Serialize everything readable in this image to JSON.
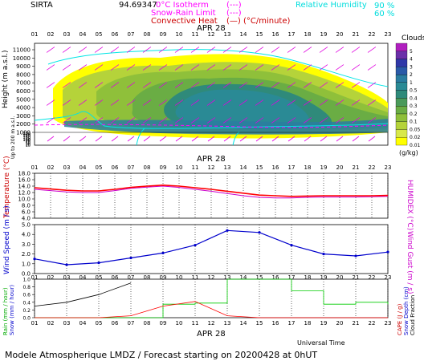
{
  "header": {
    "station": "SIRTA",
    "coords": "94.69347",
    "legend_left": [
      {
        "label": "0°C Isotherm",
        "style": "(---)",
        "color": "#ff00ff"
      },
      {
        "label": "Snow-Rain Limit",
        "style": "(---)",
        "color": "#ff00ff"
      },
      {
        "label": "Convective Heat",
        "style": "(—) (°C/minute)",
        "color": "#cc0000"
      }
    ],
    "legend_right": {
      "label": "Relative Humidity",
      "values": [
        "90 %",
        "60 %"
      ],
      "color": "#00dddd"
    }
  },
  "footer": {
    "xlabel": "Universal Time",
    "title": "Modele Atmospherique LMDZ / Forecast starting on 20200428 at 0hUT"
  },
  "hours": [
    "01",
    "02",
    "03",
    "04",
    "05",
    "06",
    "07",
    "08",
    "09",
    "10",
    "11",
    "12",
    "13",
    "14",
    "15",
    "16",
    "17",
    "18",
    "19",
    "20",
    "21",
    "22",
    "23"
  ],
  "date_label": "APR 28",
  "colors": {
    "temperature": "#ff0000",
    "humidex": "#cc00cc",
    "wind": "#0000cc",
    "rain": "#ff0000",
    "snow": "#000000",
    "cloud_fraction": "#00cc00",
    "rh": "#00e5e5",
    "arrows": "#e000e0"
  },
  "chart_data": [
    {
      "type": "heatmap",
      "title": "Clouds",
      "ylabel": "Height (m a.s.l.)",
      "ylabel2": "Up to 200 m a.s.l.",
      "yticks_upper": [
        1000,
        2000,
        3000,
        4000,
        5000,
        6000,
        7000,
        8000,
        9000,
        10000,
        11000
      ],
      "yticks_lower": [
        10,
        20,
        30,
        40,
        50,
        60,
        70,
        80,
        90,
        100,
        120,
        140,
        160,
        180,
        200
      ],
      "colorbar": {
        "label": "(g/kg)",
        "levels": [
          "0.01",
          "0.02",
          "0.05",
          "0.1",
          "0.2",
          "0.3",
          "0.4",
          "0.5",
          "1",
          "2",
          "3",
          "4",
          "5"
        ],
        "colors": [
          "#ffff00",
          "#d8e84a",
          "#b5d33a",
          "#8fc03a",
          "#6aad44",
          "#4a9a5a",
          "#2f8a7a",
          "#2a8a95",
          "#2a7ca0",
          "#2a5aa8",
          "#3038a8",
          "#6a2fa8",
          "#b01fbf"
        ]
      }
    },
    {
      "type": "line",
      "ylabel": "Temperature (°C)",
      "ylabel2": "HUMIDEX (°C)",
      "ylim": [
        4,
        18
      ],
      "yticks": [
        "4.0",
        "6.0",
        "8.0",
        "10.0",
        "12.0",
        "14.0",
        "16.0",
        "18.0"
      ],
      "x": [
        "01",
        "02",
        "03",
        "04",
        "05",
        "06",
        "07",
        "08",
        "09",
        "10",
        "11",
        "12",
        "13",
        "14",
        "15",
        "16",
        "17",
        "18",
        "19",
        "20",
        "21",
        "22",
        "23"
      ],
      "series": [
        {
          "key": "temperature",
          "values": [
            13.5,
            13.1,
            12.7,
            12.5,
            12.5,
            13.0,
            13.6,
            14.0,
            14.3,
            14.0,
            13.5,
            13.0,
            12.4,
            11.8,
            11.2,
            11.0,
            10.8,
            10.9,
            11.0,
            11.0,
            11.0,
            11.0,
            11.1
          ]
        },
        {
          "key": "humidex",
          "values": [
            13.0,
            12.6,
            12.2,
            12.0,
            12.0,
            12.6,
            13.3,
            13.7,
            14.0,
            13.6,
            13.0,
            12.4,
            11.7,
            11.0,
            10.5,
            10.3,
            10.3,
            10.5,
            10.6,
            10.6,
            10.6,
            10.7,
            10.8
          ]
        }
      ]
    },
    {
      "type": "line",
      "ylabel": "Wind Speed (m / s)",
      "ylabel2": "Wind Gust (m / s)",
      "ylim": [
        0,
        5
      ],
      "yticks": [
        "0.0",
        "1.0",
        "2.0",
        "3.0",
        "4.0",
        "5.0"
      ],
      "x": [
        "01",
        "03",
        "05",
        "07",
        "09",
        "11",
        "13",
        "15",
        "17",
        "19",
        "21",
        "23"
      ],
      "series": [
        {
          "key": "wind",
          "values": [
            1.5,
            0.9,
            1.1,
            1.6,
            2.1,
            2.9,
            4.4,
            4.2,
            2.9,
            2.0,
            1.8,
            2.2
          ]
        }
      ]
    },
    {
      "type": "line",
      "ylabel": "Rain (mm / hour)",
      "ylabel2": "Snow (mm / hour)",
      "ylabel3": "CAPE (J / g)",
      "ylabel4": "Snow Depth (cm)",
      "ylabel5": "Cloud Fraction",
      "ylim": [
        0,
        1
      ],
      "yticks": [
        "0.0",
        "0.2",
        "0.4",
        "0.6",
        "0.8",
        "1.0"
      ],
      "x": [
        "01",
        "03",
        "05",
        "07",
        "09",
        "11",
        "13",
        "15",
        "17",
        "19",
        "21",
        "23"
      ],
      "series": [
        {
          "key": "snow",
          "values": [
            0.3,
            0.4,
            0.6,
            0.9,
            null,
            null,
            null,
            null,
            null,
            null,
            null,
            null
          ]
        },
        {
          "key": "rain",
          "values": [
            0.0,
            0.0,
            0.0,
            0.05,
            0.3,
            0.42,
            0.05,
            0.0,
            0.0,
            0.0,
            0.0,
            0.0
          ]
        }
      ],
      "cloud_fraction_steps": [
        0.0,
        0.0,
        0.0,
        0.0,
        0.35,
        0.38,
        1.0,
        1.0,
        0.7,
        0.35,
        0.4,
        0.35
      ]
    }
  ]
}
